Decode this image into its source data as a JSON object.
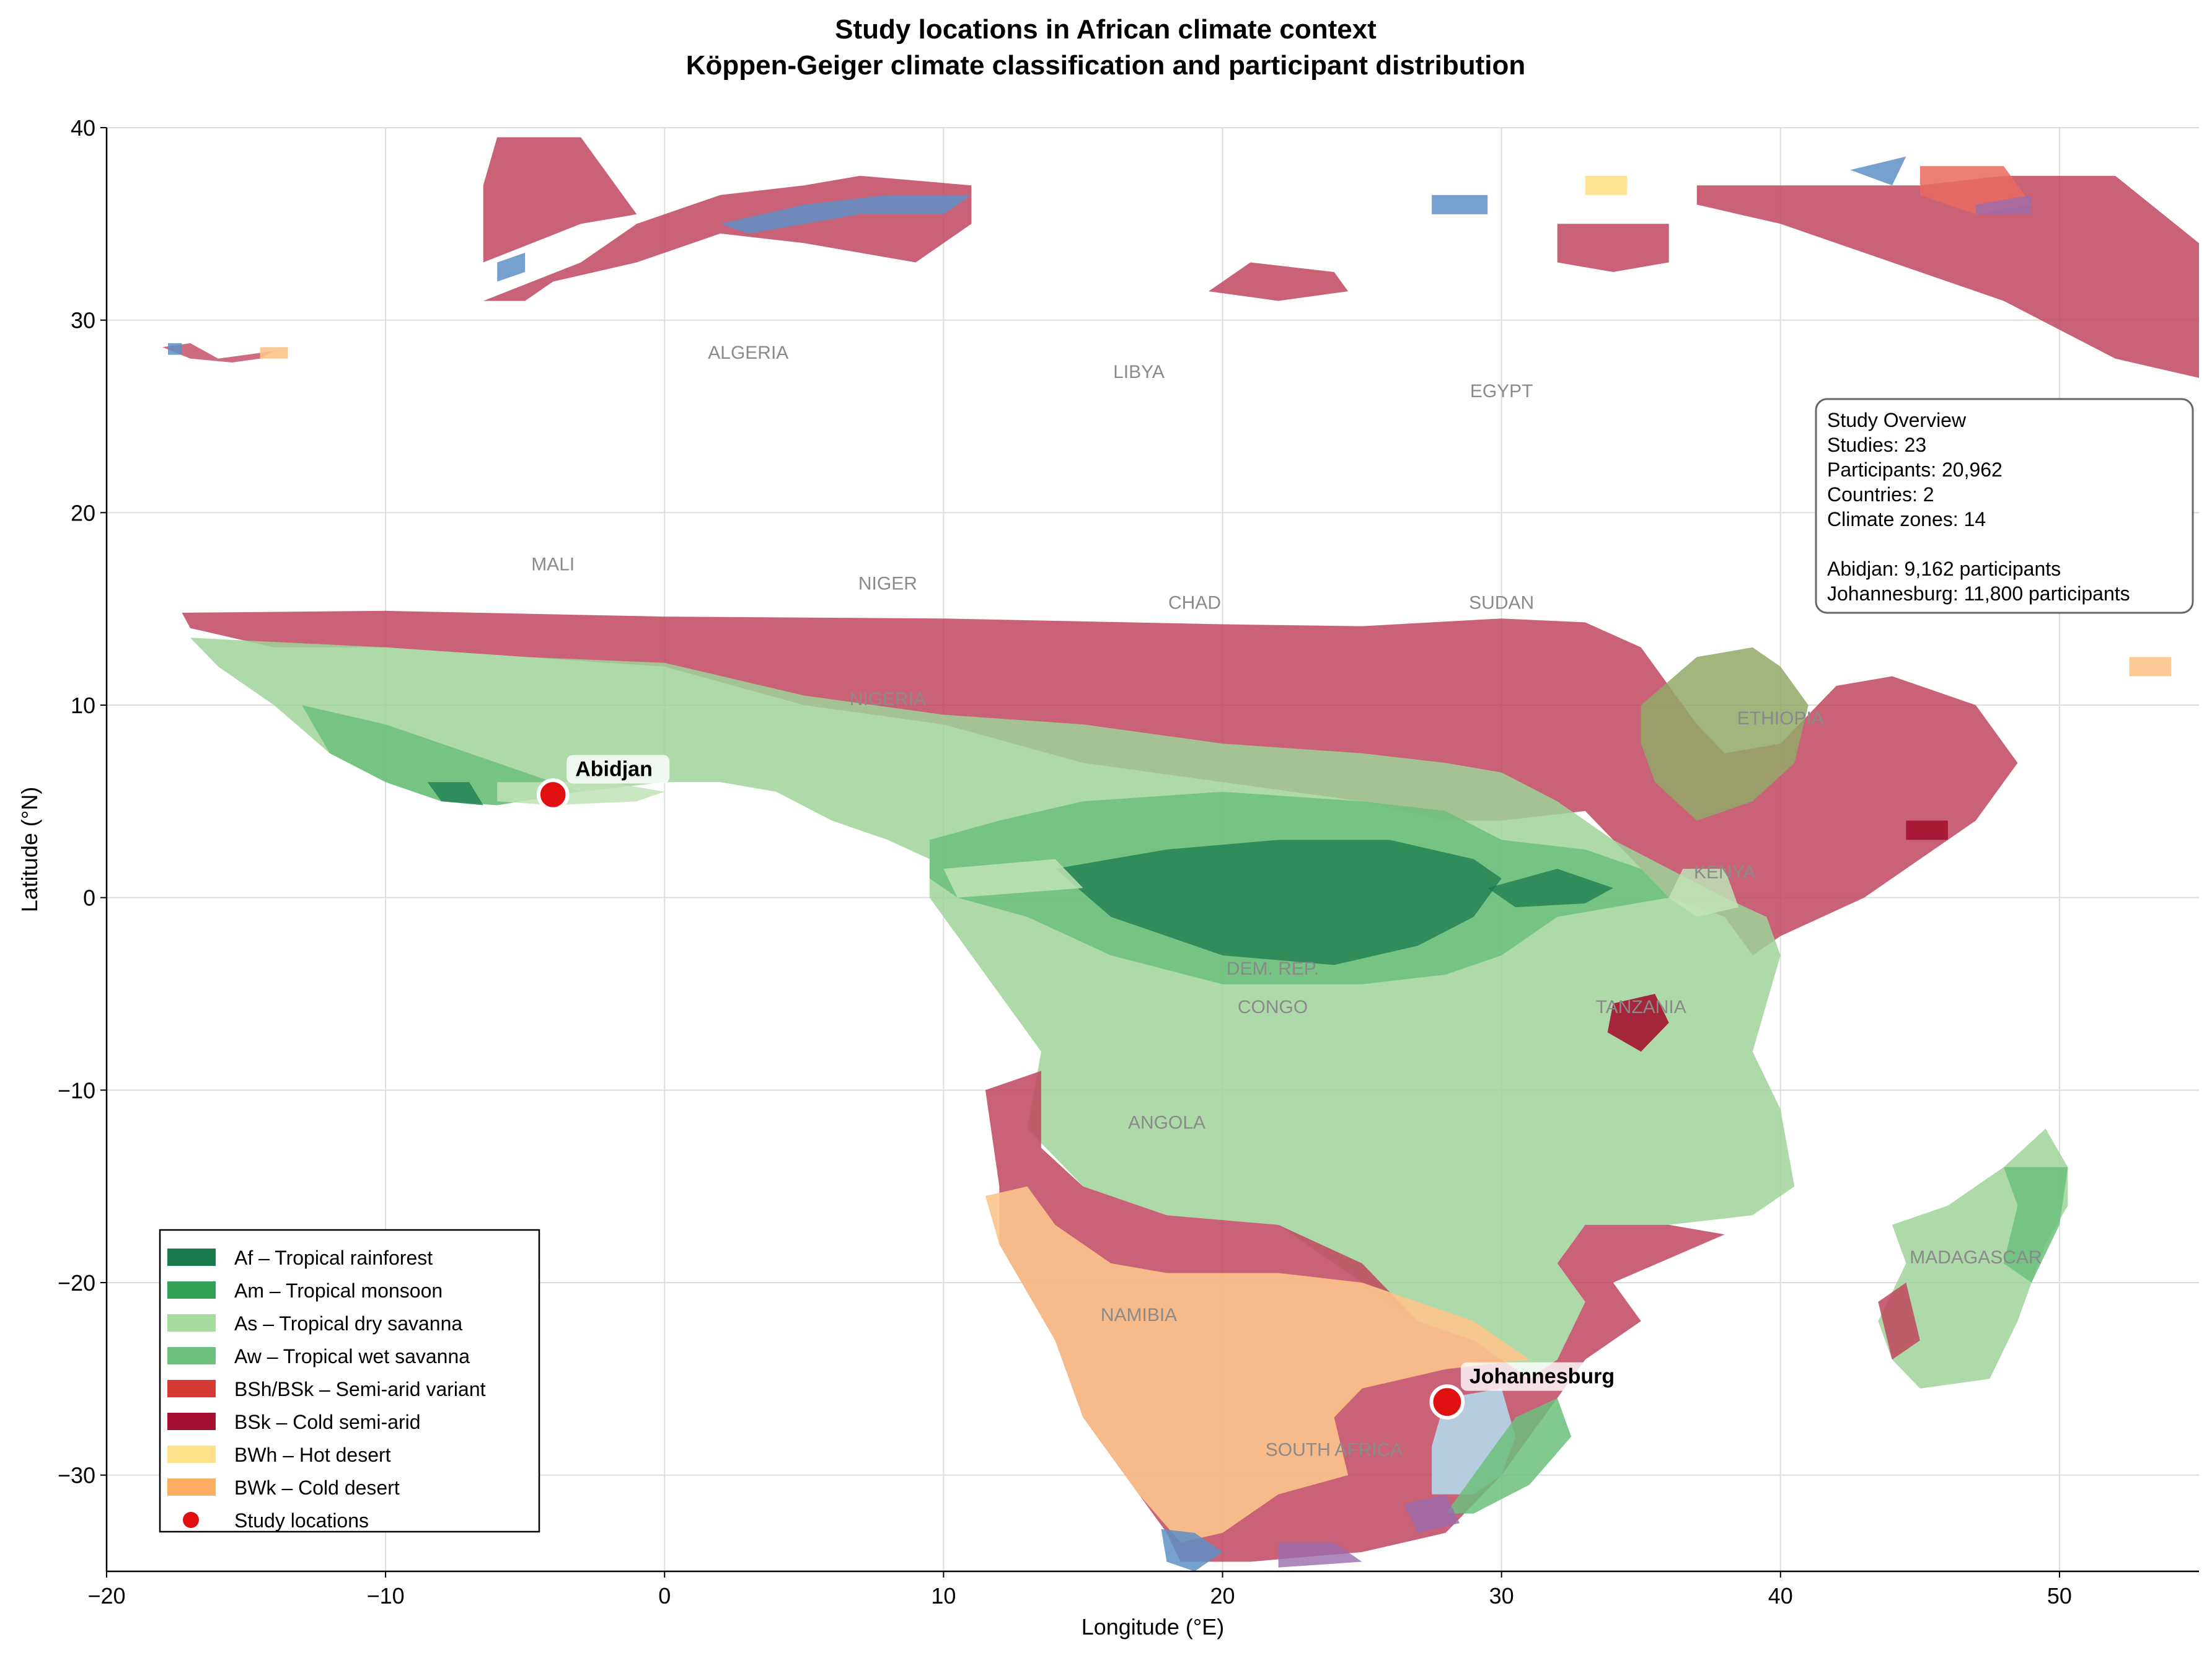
{
  "title": {
    "line1": "Study locations in African climate context",
    "line2": "Köppen-Geiger climate classification and participant distribution"
  },
  "axes": {
    "xlabel": "Longitude (°E)",
    "ylabel": "Latitude (°N)",
    "xlim": [
      -20,
      55
    ],
    "ylim": [
      -35,
      40
    ],
    "xticks": [
      -20,
      -10,
      0,
      10,
      20,
      30,
      40,
      50
    ],
    "yticks": [
      -30,
      -20,
      -10,
      0,
      10,
      20,
      30,
      40
    ],
    "xtick_labels": [
      "−20",
      "−10",
      "0",
      "10",
      "20",
      "30",
      "40",
      "50"
    ],
    "ytick_labels": [
      "−30",
      "−20",
      "−10",
      "0",
      "10",
      "20",
      "30",
      "40"
    ],
    "grid": true
  },
  "colors": {
    "Af": "#1a7a4c",
    "Am": "#3a9a5c",
    "As": "#bfe3b5",
    "Aw": "#9fd499",
    "Aw_wet": "#6cbf7d",
    "BSh": "#c0475f",
    "BSk": "#a3122e",
    "BWh": "#ffe08a",
    "BWk": "#fcc48c",
    "Cs": "#e96a5f",
    "Cf": "#b3d9ea",
    "Cw_blue": "#5e8fc4",
    "D_purple": "#9b6bae",
    "highland": "#93a868",
    "study_marker": "#e01010"
  },
  "chart_data": {
    "type": "map",
    "study_locations": [
      {
        "name": "Abidjan",
        "lon": -4.0,
        "lat": 5.35,
        "participants": 9162
      },
      {
        "name": "Johannesburg",
        "lon": 28.05,
        "lat": -26.2,
        "participants": 11800
      }
    ]
  },
  "country_labels": [
    {
      "name": "ALGERIA",
      "lon": 3.0,
      "lat": 28.0
    },
    {
      "name": "LIBYA",
      "lon": 17.0,
      "lat": 27.0
    },
    {
      "name": "EGYPT",
      "lon": 30.0,
      "lat": 26.0
    },
    {
      "name": "MALI",
      "lon": -4.0,
      "lat": 17.0
    },
    {
      "name": "NIGER",
      "lon": 8.0,
      "lat": 16.0
    },
    {
      "name": "CHAD",
      "lon": 19.0,
      "lat": 15.0
    },
    {
      "name": "SUDAN",
      "lon": 30.0,
      "lat": 15.0
    },
    {
      "name": "NIGERIA",
      "lon": 8.0,
      "lat": 10.0
    },
    {
      "name": "ETHIOPIA",
      "lon": 40.0,
      "lat": 9.0
    },
    {
      "name": "KENYA",
      "lon": 38.0,
      "lat": 1.0
    },
    {
      "name": "DEM. REP.",
      "lon": 21.8,
      "lat": -4.0
    },
    {
      "name": "CONGO",
      "lon": 21.8,
      "lat": -6.0
    },
    {
      "name": "TANZANIA",
      "lon": 35.0,
      "lat": -6.0
    },
    {
      "name": "ANGOLA",
      "lon": 18.0,
      "lat": -12.0
    },
    {
      "name": "NAMIBIA",
      "lon": 17.0,
      "lat": -22.0
    },
    {
      "name": "MADAGASCAR",
      "lon": 47.0,
      "lat": -19.0
    },
    {
      "name": "SOUTH AFRICA",
      "lon": 24.0,
      "lat": -29.0
    }
  ],
  "legend": {
    "placement": "lower-left",
    "items": [
      {
        "label": "Af – Tropical rainforest",
        "color": "#1a7a4c",
        "kind": "patch"
      },
      {
        "label": "Am – Tropical monsoon",
        "color": "#33a055",
        "kind": "patch"
      },
      {
        "label": "As – Tropical dry savanna",
        "color": "#a6dba0",
        "kind": "patch"
      },
      {
        "label": "Aw – Tropical wet savanna",
        "color": "#6cbf7d",
        "kind": "patch"
      },
      {
        "label": "BSh/BSk – Semi-arid variant",
        "color": "#d73a35",
        "kind": "patch"
      },
      {
        "label": "BSk – Cold semi-arid",
        "color": "#a50f30",
        "kind": "patch"
      },
      {
        "label": "BWh – Hot desert",
        "color": "#ffe08a",
        "kind": "patch"
      },
      {
        "label": "BWk – Cold desert",
        "color": "#fdae61",
        "kind": "patch"
      },
      {
        "label": "Study locations",
        "color": "#e01010",
        "kind": "marker"
      }
    ]
  },
  "info_box": {
    "placement": "upper-right",
    "lines": [
      "Study Overview",
      "Studies: 23",
      "Participants: 20,962",
      "Countries: 2",
      "Climate zones: 14",
      "",
      "Abidjan: 9,162 participants",
      "Johannesburg: 11,800 participants"
    ]
  }
}
